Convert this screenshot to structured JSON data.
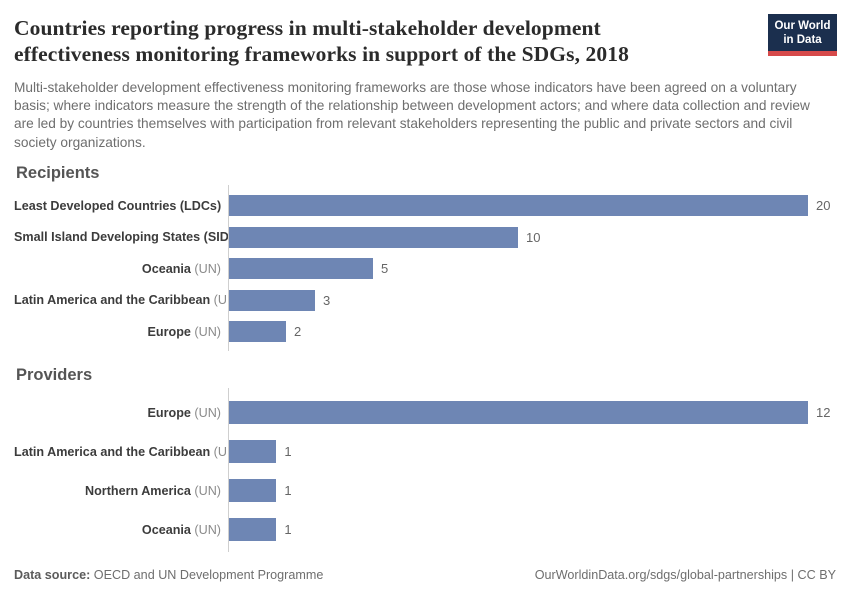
{
  "header": {
    "title_lines": [
      "Countries reporting progress in multi-stakeholder development",
      "effectiveness monitoring frameworks in support of the SDGs, 2018"
    ],
    "subtitle": "Multi-stakeholder development effectiveness monitoring frameworks are those whose indicators have been agreed on a voluntary basis; where indicators measure the strength of the relationship between development actors; and where data collection and review are led by countries themselves with participation from relevant stakeholders representing the public and private sectors and civil society organizations.",
    "logo": {
      "line1": "Our World",
      "line2": "in Data"
    }
  },
  "chart_data": [
    {
      "type": "bar",
      "title": "Recipients",
      "orientation": "horizontal",
      "categories": [
        "Least Developed Countries (LDCs)",
        "Small Island Developing States (SIDS)",
        "Oceania",
        "Latin America and the Caribbean",
        "Europe"
      ],
      "suffixes": [
        "",
        "",
        " (UN)",
        " (UN)",
        " (UN)"
      ],
      "values": [
        20,
        10,
        5,
        3,
        2
      ],
      "xlim": [
        0,
        20
      ],
      "value_labels_shown": true,
      "grid": false,
      "legend": "none"
    },
    {
      "type": "bar",
      "title": "Providers",
      "orientation": "horizontal",
      "categories": [
        "Europe",
        "Latin America and the Caribbean",
        "Northern America",
        "Oceania"
      ],
      "suffixes": [
        " (UN)",
        " (UN)",
        " (UN)",
        " (UN)"
      ],
      "values": [
        12,
        1,
        1,
        1
      ],
      "xlim": [
        0,
        12
      ],
      "value_labels_shown": true,
      "grid": false,
      "legend": "none"
    }
  ],
  "footer": {
    "source_label": "Data source:",
    "source_text": " OECD and UN Development Programme",
    "link_text": "OurWorldinData.org/sdgs/global-partnerships",
    "separator": " | ",
    "license_text": "CC BY"
  },
  "colors": {
    "bar": "#6e86b4",
    "logo_navy": "#1b2f4e",
    "logo_red": "#d64a4a",
    "title_text": "#2b2b2b",
    "body_text": "#6e6e6e",
    "axis_line": "#cfcfcf"
  }
}
